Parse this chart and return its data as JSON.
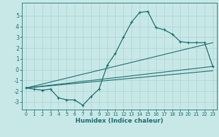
{
  "xlabel": "Humidex (Indice chaleur)",
  "ylabel": "",
  "bg_color": "#c8e8e8",
  "grid_color": "#b0d4d4",
  "line_color": "#1a6b6b",
  "xlim": [
    -0.5,
    23.5
  ],
  "ylim": [
    -3.7,
    6.2
  ],
  "yticks": [
    -3,
    -2,
    -1,
    0,
    1,
    2,
    3,
    4,
    5
  ],
  "xticks": [
    0,
    1,
    2,
    3,
    4,
    5,
    6,
    7,
    8,
    9,
    10,
    11,
    12,
    13,
    14,
    15,
    16,
    17,
    18,
    19,
    20,
    21,
    22,
    23
  ],
  "main_curve_x": [
    0,
    1,
    2,
    3,
    4,
    5,
    6,
    7,
    8,
    9,
    10,
    11,
    12,
    13,
    14,
    15,
    16,
    17,
    18,
    19,
    20,
    21,
    22,
    23
  ],
  "main_curve_y": [
    -1.7,
    -1.8,
    -1.9,
    -1.8,
    -2.6,
    -2.8,
    -2.8,
    -3.3,
    -2.5,
    -1.8,
    0.4,
    1.5,
    3.0,
    4.4,
    5.3,
    5.4,
    3.9,
    3.7,
    3.3,
    2.6,
    2.5,
    2.5,
    2.5,
    0.3
  ],
  "line1_x": [
    0,
    23
  ],
  "line1_y": [
    -1.7,
    0.3
  ],
  "line2_x": [
    0,
    23
  ],
  "line2_y": [
    -1.7,
    2.5
  ],
  "line3_x": [
    0,
    23
  ],
  "line3_y": [
    -1.7,
    -0.1
  ]
}
